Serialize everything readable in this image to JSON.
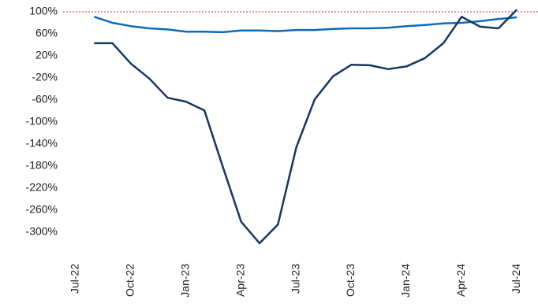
{
  "chart_data": {
    "type": "line",
    "categories": [
      "Jul-22",
      null,
      null,
      "Oct-22",
      null,
      null,
      "Jan-23",
      null,
      null,
      "Apr-23",
      null,
      null,
      "Jul-23",
      null,
      null,
      "Oct-23",
      null,
      null,
      "Jan-24",
      null,
      null,
      "Apr-24",
      null,
      null,
      "Jul-24"
    ],
    "series": [
      {
        "color": "#0e6bb8",
        "values": [
          null,
          91,
          80,
          74,
          70,
          68,
          64,
          64,
          63,
          66,
          66,
          65,
          67,
          67,
          69,
          70,
          70,
          71,
          74,
          76,
          79,
          80,
          83,
          87,
          90
        ]
      },
      {
        "color": "#17375e",
        "values": [
          null,
          43,
          43,
          6,
          -21,
          -56,
          -63,
          -79,
          -181,
          -281,
          -320,
          -286,
          -146,
          -59,
          -17,
          4,
          3,
          -4,
          1,
          16,
          43,
          91,
          73,
          70,
          104
        ]
      }
    ],
    "reference_line": {
      "value": 100,
      "color": "#d9302c"
    },
    "ylim": [
      -340,
      100
    ],
    "yticks": [
      {
        "value": 100,
        "label": "100%"
      },
      {
        "value": 60,
        "label": "60%"
      },
      {
        "value": 20,
        "label": "20%"
      },
      {
        "value": -20,
        "label": "-20%"
      },
      {
        "value": -60,
        "label": "-60%"
      },
      {
        "value": -100,
        "label": "-100%"
      },
      {
        "value": -140,
        "label": "-140%"
      },
      {
        "value": -180,
        "label": "-180%"
      },
      {
        "value": -220,
        "label": "-220%"
      },
      {
        "value": -260,
        "label": "-260%"
      },
      {
        "value": -300,
        "label": "-300%"
      }
    ],
    "grid": false
  }
}
